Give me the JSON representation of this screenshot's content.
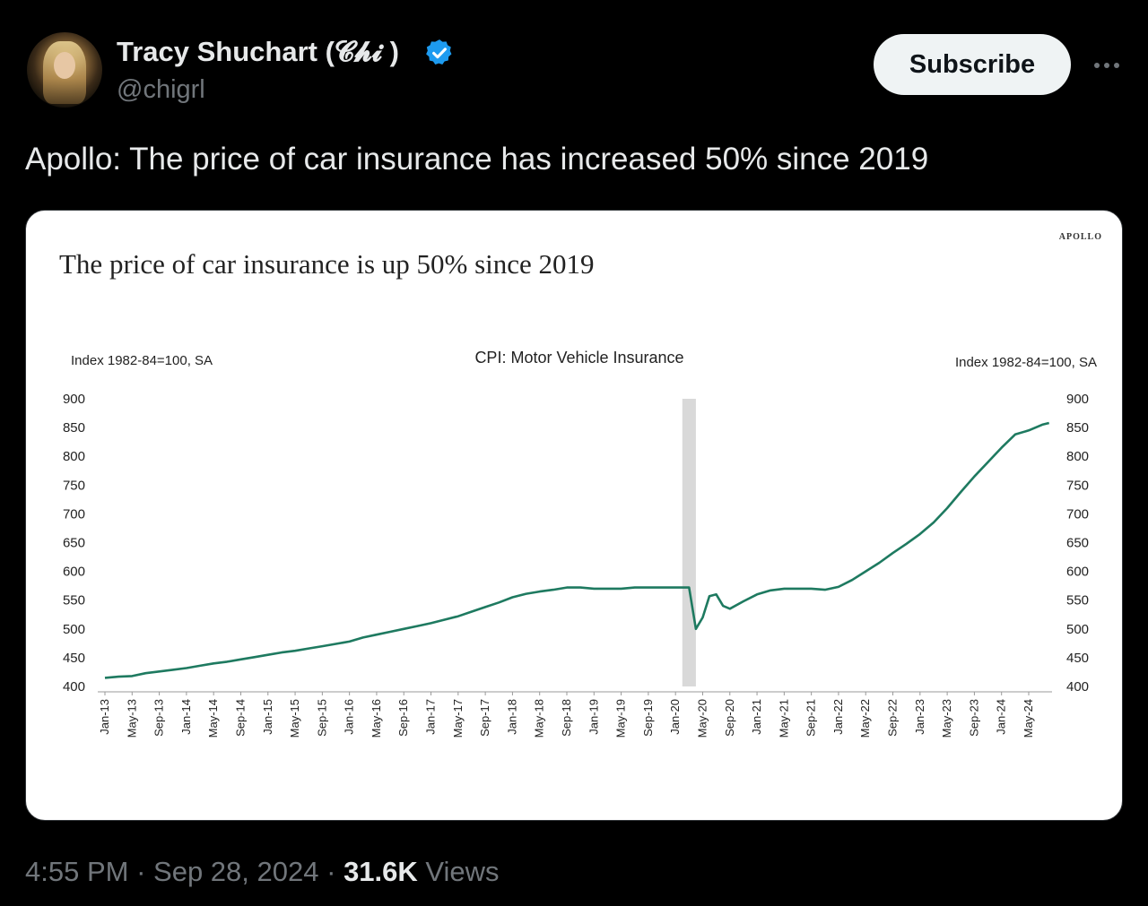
{
  "author": {
    "name": "Tracy Shuchart (𝓒𝓱𝓲 )",
    "handle": "@chigrl",
    "verified": true
  },
  "subscribe_label": "Subscribe",
  "tweet_text": "Apollo: The price of car insurance has increased 50% since 2019",
  "footer": {
    "time": "4:55 PM",
    "sep1": "·",
    "date": "Sep 28, 2024",
    "sep2": "·",
    "views_count": "31.6K",
    "views_label": "Views"
  },
  "colors": {
    "line": "#1e7a60",
    "recession": "#d9d9d9",
    "verified": "#1d9bf0"
  },
  "chart_data": {
    "type": "line",
    "headline": "The price of car insurance is up 50% since 2019",
    "brand": "APOLLO",
    "title": "CPI: Motor Vehicle Insurance",
    "ylabel_left": "Index 1982-84=100, SA",
    "ylabel_right": "Index 1982-84=100, SA",
    "ylim": [
      400,
      900
    ],
    "yticks": [
      400,
      450,
      500,
      550,
      600,
      650,
      700,
      750,
      800,
      850,
      900
    ],
    "xticks": [
      "Jan-13",
      "May-13",
      "Sep-13",
      "Jan-14",
      "May-14",
      "Sep-14",
      "Jan-15",
      "May-15",
      "Sep-15",
      "Jan-16",
      "May-16",
      "Sep-16",
      "Jan-17",
      "May-17",
      "Sep-17",
      "Jan-18",
      "May-18",
      "Sep-18",
      "Jan-19",
      "May-19",
      "Sep-19",
      "Jan-20",
      "May-20",
      "Sep-20",
      "Jan-21",
      "May-21",
      "Sep-21",
      "Jan-22",
      "May-22",
      "Sep-22",
      "Jan-23",
      "May-23",
      "Sep-23",
      "Jan-24",
      "May-24"
    ],
    "recession_shading": [
      "Feb-20",
      "Apr-20"
    ],
    "series": [
      {
        "name": "",
        "x": [
          "Jan-13",
          "Mar-13",
          "May-13",
          "Jul-13",
          "Sep-13",
          "Nov-13",
          "Jan-14",
          "Mar-14",
          "May-14",
          "Jul-14",
          "Sep-14",
          "Nov-14",
          "Jan-15",
          "Mar-15",
          "May-15",
          "Jul-15",
          "Sep-15",
          "Nov-15",
          "Jan-16",
          "Mar-16",
          "May-16",
          "Jul-16",
          "Sep-16",
          "Nov-16",
          "Jan-17",
          "Mar-17",
          "May-17",
          "Jul-17",
          "Sep-17",
          "Nov-17",
          "Jan-18",
          "Mar-18",
          "May-18",
          "Jul-18",
          "Sep-18",
          "Nov-18",
          "Jan-19",
          "Mar-19",
          "May-19",
          "Jul-19",
          "Sep-19",
          "Nov-19",
          "Jan-20",
          "Mar-20",
          "Apr-20",
          "May-20",
          "Jun-20",
          "Jul-20",
          "Aug-20",
          "Sep-20",
          "Nov-20",
          "Jan-21",
          "Mar-21",
          "May-21",
          "Jul-21",
          "Sep-21",
          "Nov-21",
          "Jan-22",
          "Mar-22",
          "May-22",
          "Jul-22",
          "Sep-22",
          "Nov-22",
          "Jan-23",
          "Mar-23",
          "May-23",
          "Jul-23",
          "Sep-23",
          "Nov-23",
          "Jan-24",
          "Mar-24",
          "May-24",
          "Jul-24",
          "Aug-24"
        ],
        "values": [
          415,
          417,
          418,
          423,
          426,
          429,
          432,
          436,
          440,
          443,
          447,
          451,
          455,
          459,
          462,
          466,
          470,
          474,
          478,
          485,
          490,
          495,
          500,
          505,
          510,
          516,
          522,
          530,
          538,
          546,
          555,
          561,
          565,
          568,
          572,
          572,
          570,
          570,
          570,
          572,
          572,
          572,
          572,
          572,
          500,
          520,
          557,
          560,
          540,
          535,
          548,
          560,
          567,
          570,
          570,
          570,
          568,
          573,
          585,
          600,
          615,
          632,
          648,
          665,
          685,
          710,
          738,
          765,
          790,
          815,
          838,
          845,
          855,
          858
        ]
      }
    ]
  }
}
